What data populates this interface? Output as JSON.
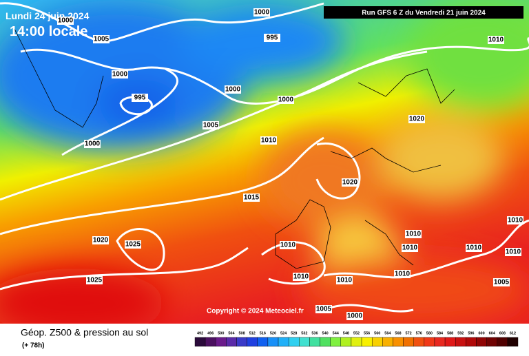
{
  "header": {
    "valid_date": "Lundi 24 juin 2024",
    "local_time": "14:00 locale",
    "run": "Run GFS 6 Z du Vendredi 21 juin 2024"
  },
  "copyright": "Copyright © 2024 Meteociel.fr",
  "isobars": [
    1000,
    1005,
    1000,
    995,
    1010,
    1000,
    995,
    1000,
    1000,
    1005,
    1000,
    1010,
    1020,
    1020,
    1015,
    1020,
    1025,
    1010,
    1010,
    1010,
    1010,
    1010,
    1010,
    1010,
    1010,
    1010,
    1025,
    1005,
    1005,
    1000
  ],
  "footer": {
    "title": "Géop. Z500 & pression au sol",
    "lead": "(+ 78h)"
  },
  "legend": {
    "values": [
      492,
      496,
      500,
      504,
      508,
      512,
      516,
      520,
      524,
      528,
      532,
      536,
      540,
      544,
      548,
      552,
      556,
      560,
      564,
      568,
      572,
      576,
      580,
      584,
      588,
      592,
      596,
      600,
      604,
      608,
      612
    ],
    "colors": [
      "#2a0a3a",
      "#4b1060",
      "#6a1a8a",
      "#5a2aa8",
      "#3a3ac8",
      "#2040e0",
      "#1060f0",
      "#1890f8",
      "#20b0f8",
      "#30d0f0",
      "#40e0d0",
      "#40e0a0",
      "#50e060",
      "#80f040",
      "#b0f020",
      "#e0f010",
      "#f8f000",
      "#f8d000",
      "#f8b000",
      "#f89000",
      "#f07000",
      "#f05010",
      "#f03818",
      "#e82820",
      "#e01818",
      "#c81010",
      "#b00808",
      "#900404",
      "#700202",
      "#500000",
      "#200000"
    ]
  }
}
